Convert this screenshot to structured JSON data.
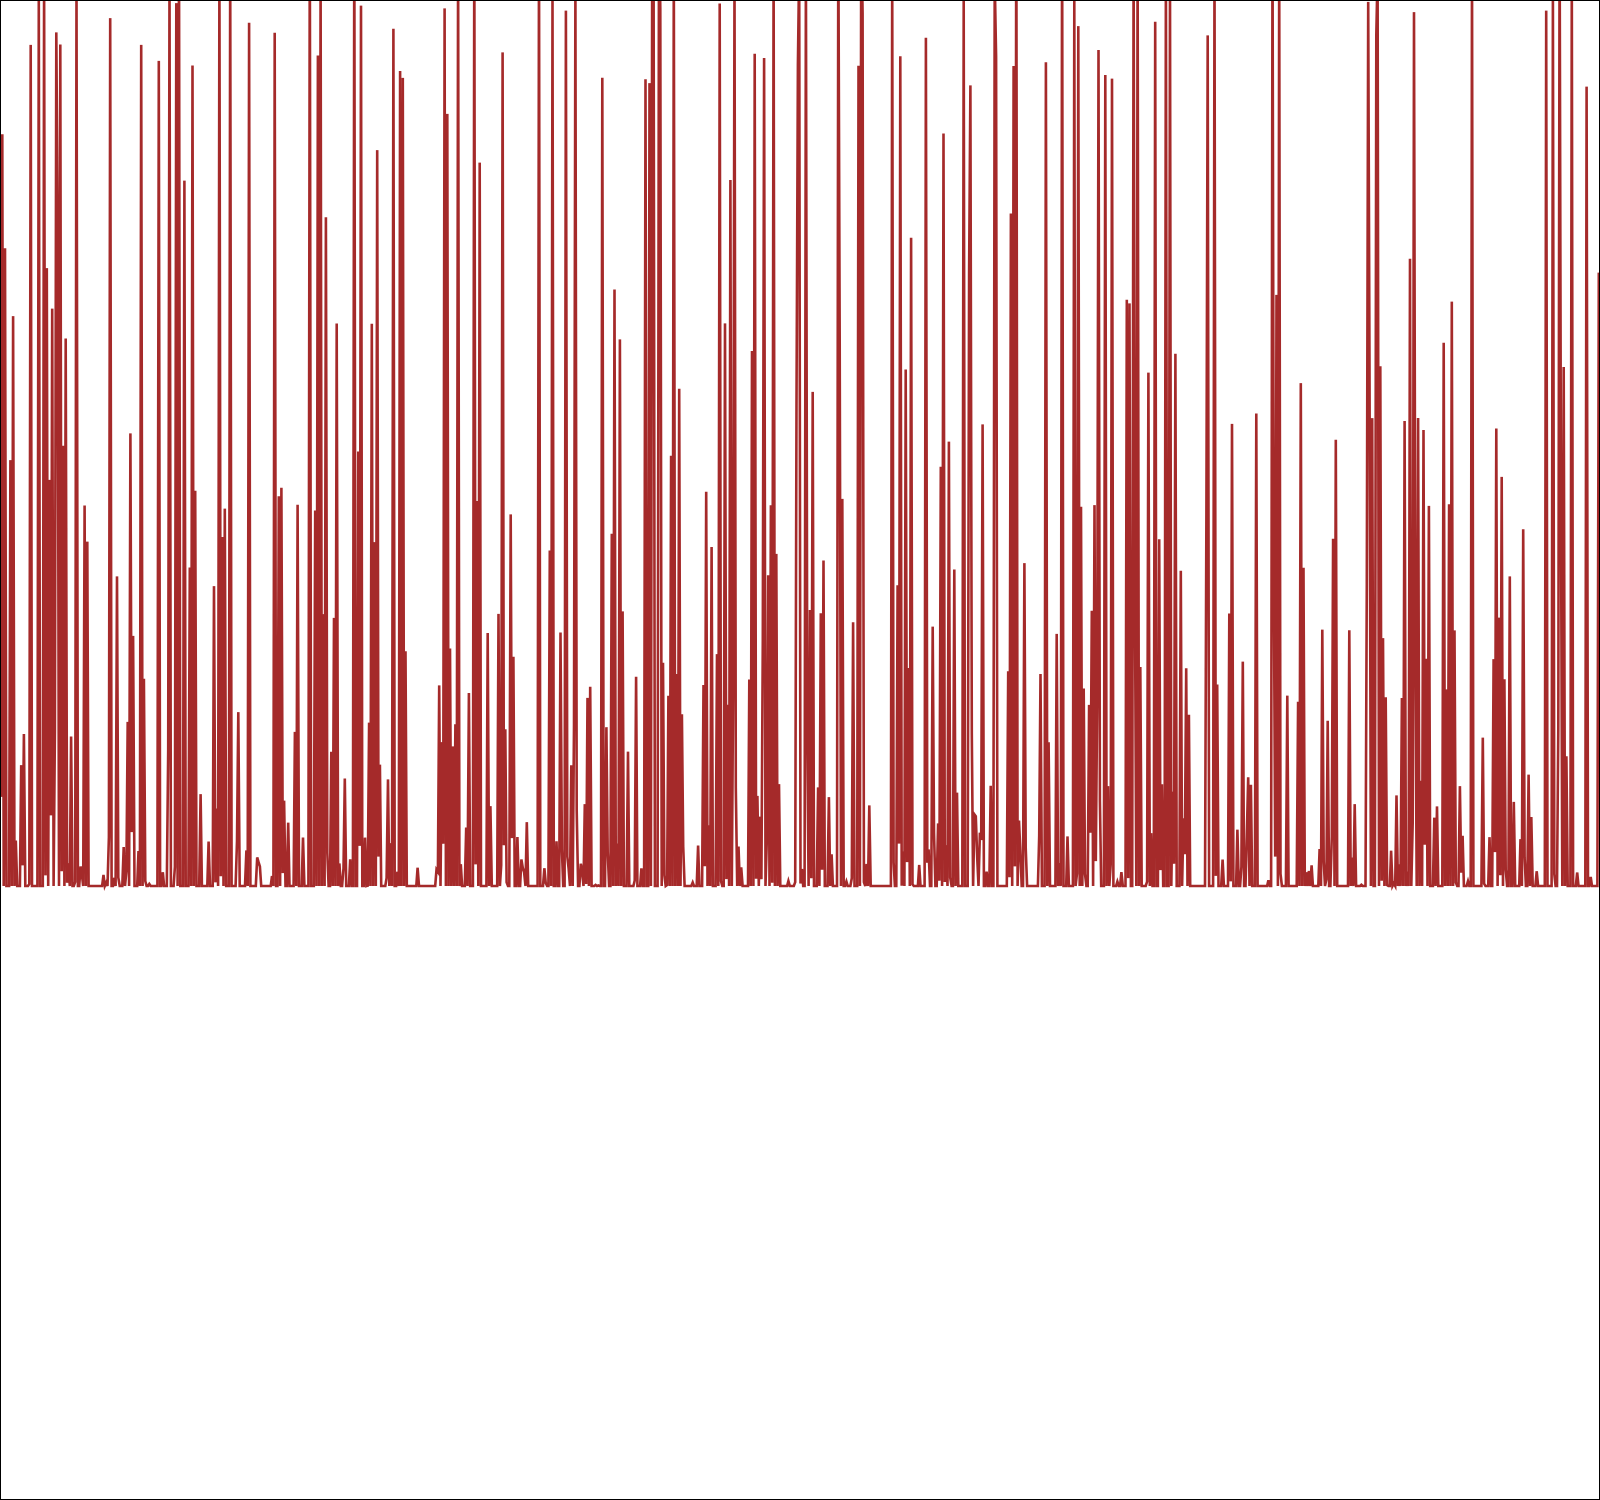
{
  "chart_data": {
    "type": "line",
    "title": "",
    "xlabel": "",
    "ylabel": "",
    "xlim": [
      0,
      1600
    ],
    "ylim": [
      0,
      1.4
    ],
    "grid": false,
    "legend": "none",
    "line_color": "#a52a2a",
    "series": [
      {
        "bursts": [
          [
            0,
            90
          ],
          [
            100,
            250
          ],
          [
            265,
            410
          ],
          [
            435,
            560
          ],
          [
            560,
            740
          ],
          [
            745,
            880
          ],
          [
            890,
            1050
          ],
          [
            1055,
            1190
          ],
          [
            1205,
            1340
          ],
          [
            1345,
            1600
          ]
        ],
        "values": [
          0.18,
          1.18,
          0.09,
          0.92,
          0.02,
          0.31,
          0.0,
          0.6,
          0.12,
          1.1,
          0.0,
          0.42,
          0.07,
          0.85,
          0.0,
          0.26,
          0.03,
          0.71,
          0.0,
          0.14,
          0.0,
          0.02,
          0.0,
          0.0,
          0.05,
          0.0,
          0.0,
          0.0,
          0.17,
          0.0,
          0.0,
          0.0,
          0.39,
          0.02,
          1.27,
          0.0,
          0.64,
          0.11,
          1.4,
          0.0,
          0.33,
          0.06,
          0.97,
          0.0,
          0.52,
          0.09,
          0.78,
          0.0,
          1.19,
          0.04,
          0.24,
          0.0,
          0.61,
          0.0,
          0.88,
          0.12,
          0.37,
          0.0,
          1.05,
          0.03,
          0.2,
          0.0,
          0.74,
          0.05,
          0.46,
          0.0,
          0.29,
          0.0,
          0.12,
          0.0,
          0.03,
          0.0,
          0.08,
          0.0,
          0.0,
          0.0,
          0.19,
          0.0,
          0.41,
          0.05,
          1.08,
          0.0,
          0.72,
          0.1,
          1.22,
          0.02,
          0.36,
          0.0,
          0.94,
          0.08,
          0.55,
          0.0,
          0.83,
          0.04,
          0.28,
          0.0,
          0.66,
          0.0,
          0.49,
          0.03,
          0.34,
          0.0,
          0.18,
          0.0,
          0.04,
          0.0,
          0.0,
          0.0,
          0.0,
          0.01,
          0.0,
          0.0,
          0.02,
          0.0,
          0.0,
          0.0,
          0.81,
          0.05,
          1.38,
          0.0,
          0.58,
          0.12,
          1.31,
          0.02,
          0.44,
          0.0,
          0.91,
          0.07,
          1.12,
          0.0,
          0.39,
          0.04,
          0.76,
          0.0,
          0.23,
          0.06,
          0.63,
          0.0,
          0.31,
          0.0,
          0.85,
          0.03,
          0.15,
          0.0,
          0.55,
          0.0,
          0.09,
          0.0,
          0.0,
          0.0,
          0.45,
          0.03,
          0.97,
          0.0,
          1.24,
          0.09,
          0.48,
          0.0,
          0.77,
          0.05,
          0.33,
          0.0,
          1.36,
          0.04,
          0.62,
          0.0,
          0.89,
          0.08,
          0.27,
          0.0,
          1.02,
          0.02,
          0.43,
          0.0,
          0.19,
          0.0,
          0.06,
          0.0,
          0.0,
          0.0,
          0.0,
          0.41,
          0.02,
          0.88,
          0.0,
          1.29,
          0.07,
          0.57,
          0.0,
          0.95,
          0.03,
          0.38,
          0.0,
          1.14,
          0.09,
          0.51,
          0.0,
          0.79,
          0.04,
          0.3,
          0.0,
          0.63,
          0.0,
          0.21,
          0.0,
          0.07,
          0.0,
          0.0,
          0.0,
          0.0,
          0.01,
          0.0,
          0.0,
          0.0,
          0.58,
          0.04,
          1.12,
          0.0,
          1.39,
          0.08,
          0.49,
          0.0,
          0.92,
          0.05,
          0.36,
          0.0,
          1.21,
          0.02,
          0.67,
          0.0,
          0.84,
          0.06,
          0.25,
          0.0,
          0.71,
          0.03,
          0.44,
          0.0,
          0.33,
          0.0,
          0.16,
          0.0,
          0.05,
          0.0,
          0.0,
          0.0,
          0.75,
          0.06,
          1.35,
          0.0,
          0.53,
          0.1,
          1.17,
          0.01,
          0.42,
          0.0,
          0.96,
          0.07,
          0.61,
          0.0,
          1.03,
          0.04,
          0.29,
          0.0,
          0.69,
          0.0,
          0.4,
          0.02,
          0.24,
          0.0,
          0.11,
          0.0,
          0.0,
          0.0,
          0.0,
          0.02,
          0.0,
          0.0,
          0.0,
          0.47,
          0.04,
          1.26,
          0.0,
          0.7,
          0.11,
          1.4,
          0.03,
          0.38,
          0.0,
          0.87,
          0.06,
          0.56,
          0.0,
          1.06,
          0.02,
          0.32,
          0.0,
          0.74,
          0.0,
          0.27,
          0.0,
          0.13,
          0.0,
          0.03,
          0.0,
          0.31,
          0.05,
          0.68,
          0.0,
          0.43,
          0.08,
          0.93,
          0.0,
          0.29,
          0.04,
          0.57,
          0.0,
          1.07,
          0.03,
          0.22,
          0.0,
          0.65,
          0.06,
          0.39,
          0.0,
          0.51,
          0.0,
          0.2,
          0.0,
          0.09,
          0.0,
          0.37,
          0.0
        ]
      }
    ]
  }
}
